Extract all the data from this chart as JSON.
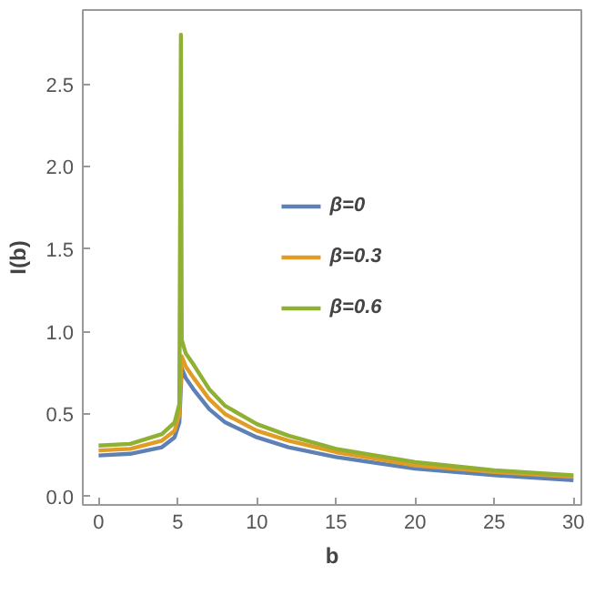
{
  "chart_data": {
    "type": "line",
    "xlabel": "b",
    "ylabel": "I(b)",
    "xlim": [
      -1,
      30.5
    ],
    "ylim": [
      -0.05,
      2.95
    ],
    "xticks": [
      0,
      5,
      10,
      15,
      20,
      25,
      30
    ],
    "yticks": [
      {
        "value": 0,
        "label": "0.0"
      },
      {
        "value": 0.5,
        "label": "0.5"
      },
      {
        "value": 1,
        "label": "1.0"
      },
      {
        "value": 1.5,
        "label": "1.5"
      },
      {
        "value": 2,
        "label": "2.0"
      },
      {
        "value": 2.5,
        "label": "2.5"
      }
    ],
    "grid": false,
    "legend": "center",
    "marker": "none",
    "line_style": "solid",
    "series": [
      {
        "name": "β=0",
        "color": "#5e81b5",
        "x": [
          0,
          2,
          4,
          4.8,
          5.1,
          5.25,
          5.5,
          6,
          7,
          8,
          10,
          12,
          15,
          20,
          25,
          30
        ],
        "values": [
          0.25,
          0.26,
          0.3,
          0.36,
          0.45,
          0.78,
          0.72,
          0.65,
          0.53,
          0.45,
          0.36,
          0.3,
          0.24,
          0.17,
          0.13,
          0.1
        ]
      },
      {
        "name": "β=0.3",
        "color": "#e19c24",
        "x": [
          0,
          2,
          4,
          4.8,
          5.1,
          5.25,
          5.5,
          6,
          7,
          8,
          10,
          12,
          15,
          20,
          25,
          30
        ],
        "values": [
          0.28,
          0.29,
          0.34,
          0.4,
          0.5,
          0.85,
          0.79,
          0.72,
          0.59,
          0.5,
          0.4,
          0.34,
          0.27,
          0.19,
          0.15,
          0.12
        ]
      },
      {
        "name": "β=0.6",
        "color": "#8fb032",
        "x": [
          0,
          2,
          4,
          4.8,
          5.1,
          5.2,
          5.25,
          5.5,
          6,
          7,
          8,
          10,
          12,
          15,
          20,
          25,
          30
        ],
        "values": [
          0.31,
          0.32,
          0.38,
          0.45,
          0.56,
          2.8,
          0.95,
          0.87,
          0.8,
          0.65,
          0.55,
          0.44,
          0.37,
          0.29,
          0.21,
          0.16,
          0.13
        ]
      }
    ]
  }
}
